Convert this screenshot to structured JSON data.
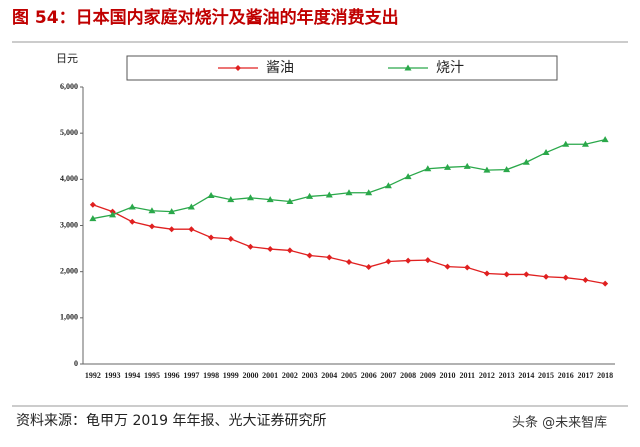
{
  "title": "图 54：日本国内家庭对烧汁及酱油的年度消费支出",
  "source": "资料来源：龟甲万 2019 年年报、光大证券研究所",
  "watermark": "头条 @未来智库",
  "chart_data": {
    "type": "line",
    "y_label": "日元",
    "categories": [
      "1992",
      "1993",
      "1994",
      "1995",
      "1996",
      "1997",
      "1998",
      "1999",
      "2000",
      "2001",
      "2002",
      "2003",
      "2004",
      "2005",
      "2006",
      "2007",
      "2008",
      "2009",
      "2010",
      "2011",
      "2012",
      "2013",
      "2014",
      "2015",
      "2016",
      "2017",
      "2018"
    ],
    "series": [
      {
        "name": "酱油",
        "color": "#e02020",
        "marker": "diamond",
        "values": [
          3450,
          3300,
          3080,
          2980,
          2920,
          2920,
          2740,
          2710,
          2540,
          2490,
          2460,
          2350,
          2310,
          2210,
          2100,
          2220,
          2240,
          2250,
          2110,
          2090,
          1960,
          1940,
          1940,
          1890,
          1870,
          1820,
          1740
        ]
      },
      {
        "name": "烧汁",
        "color": "#2aa84a",
        "marker": "triangle",
        "values": [
          3150,
          3230,
          3400,
          3320,
          3300,
          3400,
          3650,
          3560,
          3600,
          3560,
          3520,
          3630,
          3660,
          3710,
          3710,
          3860,
          4060,
          4230,
          4260,
          4280,
          4200,
          4210,
          4370,
          4580,
          4760,
          4760,
          4860
        ]
      }
    ],
    "ylim": [
      0,
      6000
    ],
    "yticks": [
      0,
      {
        "value": 1000,
        "label": "1,000"
      },
      {
        "value": 2000,
        "label": "2,000"
      },
      {
        "value": 3000,
        "label": "3,000"
      },
      {
        "value": 4000,
        "label": "4,000"
      },
      {
        "value": 5000,
        "label": "5,000"
      },
      {
        "value": 6000,
        "label": "6,000"
      }
    ],
    "grid": false
  }
}
